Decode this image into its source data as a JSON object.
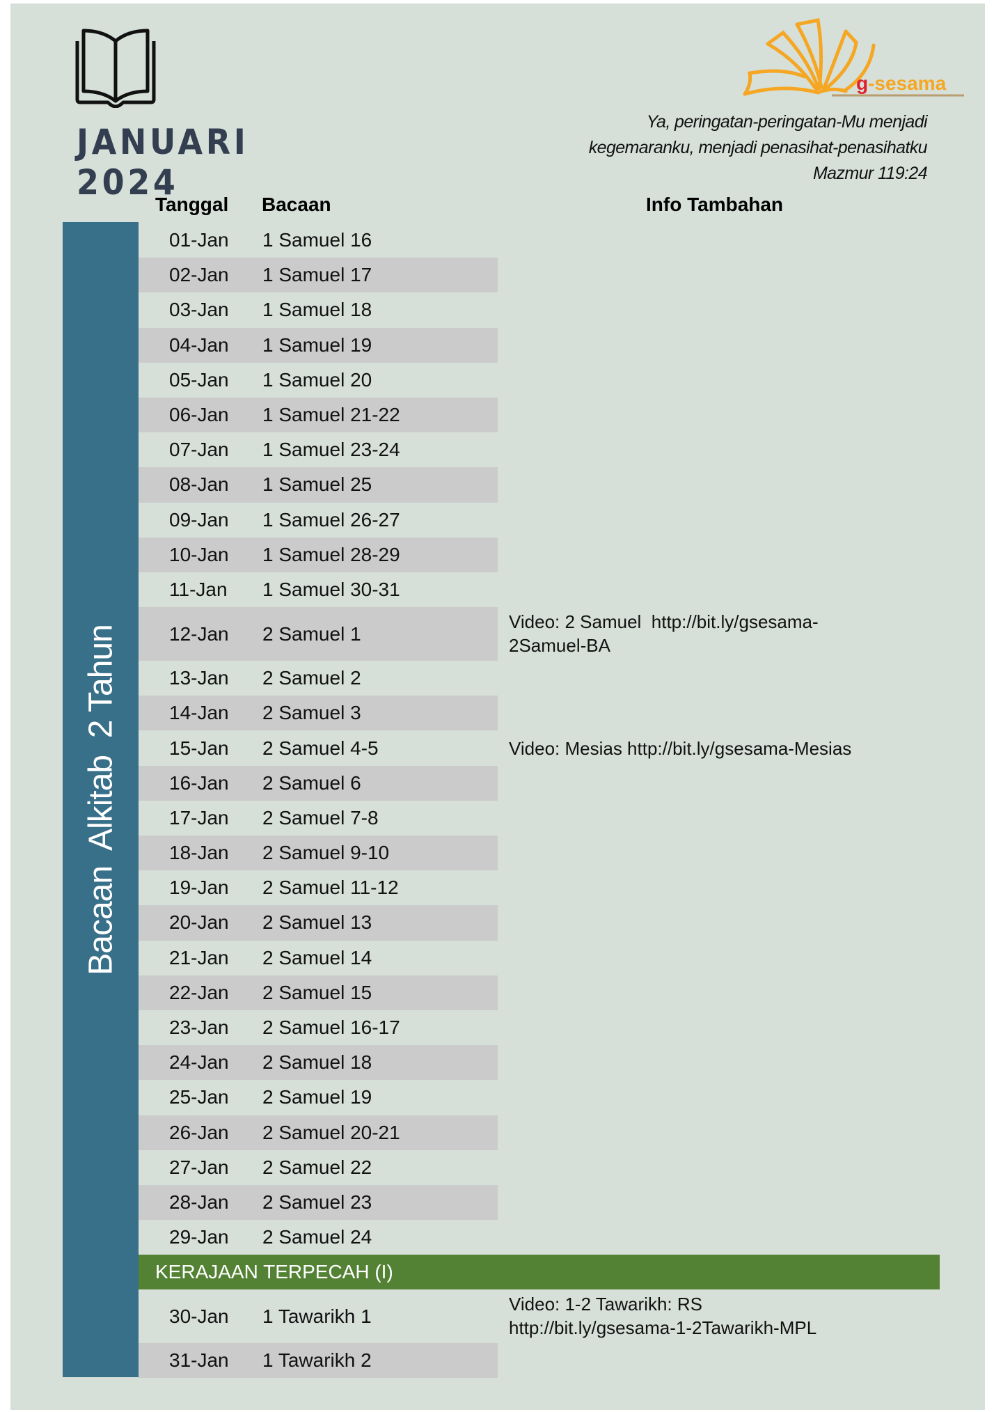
{
  "header": {
    "month": "JANUARI",
    "year": "2024",
    "logo_text_g": "g",
    "logo_text_rest": "-sesama",
    "quote_lines": [
      "Ya, peringatan-peringatan-Mu menjadi",
      "kegemaranku, menjadi penasihat-penasihatku",
      "Mazmur 119:24"
    ]
  },
  "colors": {
    "background": "#d6e0d9",
    "sidebar": "#386f89",
    "section": "#548235",
    "row_shade": "#cbcbcb",
    "logo_orange": "#f5a623",
    "logo_red": "#e0202a",
    "title": "#333f50"
  },
  "sidebar_label": "Bacaan  Alkitab  2 Tahun",
  "columns": {
    "date": "Tanggal",
    "reading": "Bacaan",
    "info": "Info Tambahan"
  },
  "rows": [
    {
      "date": "01-Jan",
      "reading": "1 Samuel 16"
    },
    {
      "date": "02-Jan",
      "reading": "1 Samuel 17"
    },
    {
      "date": "03-Jan",
      "reading": "1 Samuel 18"
    },
    {
      "date": "04-Jan",
      "reading": "1 Samuel 19"
    },
    {
      "date": "05-Jan",
      "reading": "1 Samuel 20"
    },
    {
      "date": "06-Jan",
      "reading": "1 Samuel 21-22"
    },
    {
      "date": "07-Jan",
      "reading": "1 Samuel 23-24"
    },
    {
      "date": "08-Jan",
      "reading": "1 Samuel 25"
    },
    {
      "date": "09-Jan",
      "reading": "1 Samuel 26-27"
    },
    {
      "date": "10-Jan",
      "reading": "1 Samuel 28-29"
    },
    {
      "date": "11-Jan",
      "reading": "1 Samuel 30-31"
    },
    {
      "date": "12-Jan",
      "reading": "2 Samuel 1",
      "info": [
        "Video: 2 Samuel  http://bit.ly/gsesama-",
        "2Samuel-BA"
      ]
    },
    {
      "date": "13-Jan",
      "reading": "2 Samuel 2"
    },
    {
      "date": "14-Jan",
      "reading": "2 Samuel 3"
    },
    {
      "date": "15-Jan",
      "reading": "2 Samuel 4-5",
      "info": [
        "Video: Mesias http://bit.ly/gsesama-Mesias"
      ]
    },
    {
      "date": "16-Jan",
      "reading": "2 Samuel 6"
    },
    {
      "date": "17-Jan",
      "reading": "2 Samuel 7-8"
    },
    {
      "date": "18-Jan",
      "reading": "2 Samuel 9-10"
    },
    {
      "date": "19-Jan",
      "reading": "2 Samuel 11-12"
    },
    {
      "date": "20-Jan",
      "reading": "2 Samuel 13"
    },
    {
      "date": "21-Jan",
      "reading": "2 Samuel 14"
    },
    {
      "date": "22-Jan",
      "reading": "2 Samuel 15"
    },
    {
      "date": "23-Jan",
      "reading": "2 Samuel 16-17"
    },
    {
      "date": "24-Jan",
      "reading": "2 Samuel 18"
    },
    {
      "date": "25-Jan",
      "reading": "2 Samuel 19"
    },
    {
      "date": "26-Jan",
      "reading": "2 Samuel 20-21"
    },
    {
      "date": "27-Jan",
      "reading": "2 Samuel 22"
    },
    {
      "date": "28-Jan",
      "reading": "2 Samuel 23"
    },
    {
      "date": "29-Jan",
      "reading": "2 Samuel 24"
    },
    {
      "section": "KERAJAAN TERPECAH (I)"
    },
    {
      "date": "30-Jan",
      "reading": "1 Tawarikh 1",
      "info": [
        "Video: 1-2 Tawarikh: RS",
        "http://bit.ly/gsesama-1-2Tawarikh-MPL"
      ]
    },
    {
      "date": "31-Jan",
      "reading": "1 Tawarikh 2"
    }
  ]
}
